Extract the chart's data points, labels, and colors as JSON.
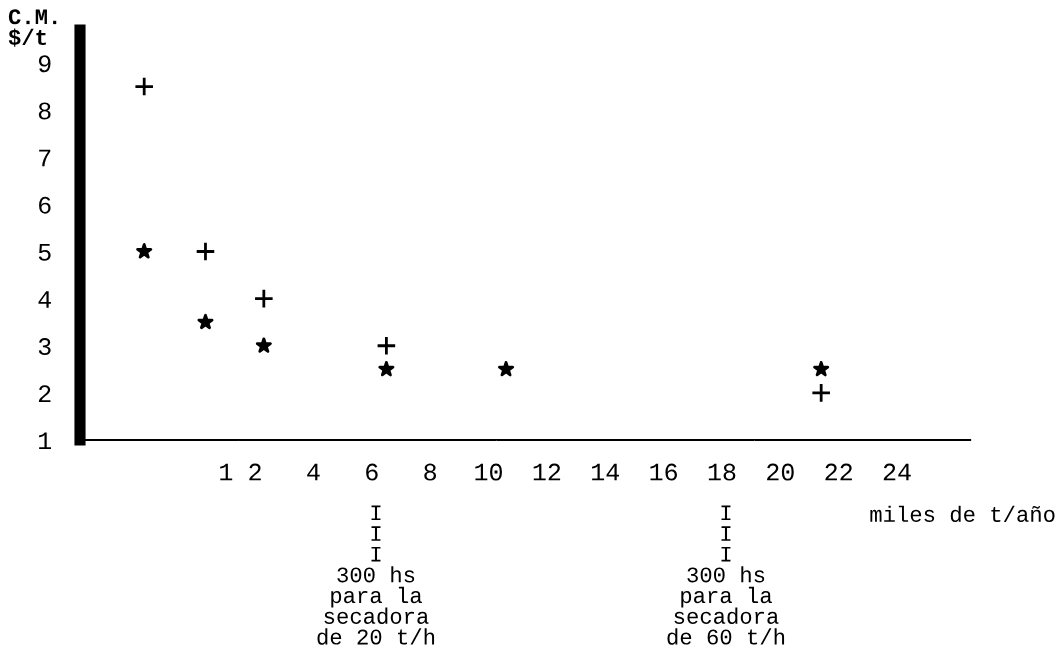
{
  "chart_data": {
    "type": "scatter",
    "ylabel": "C.M.\n$/t",
    "xlabel": "miles de t/año",
    "series": [
      {
        "color": "#000000",
        "marker": "cross",
        "x": [
          -1.8,
          0.3,
          2.3,
          6.5,
          21.4
        ],
        "values": [
          8.5,
          5,
          4,
          3,
          2
        ]
      },
      {
        "color": "#000000",
        "marker": "star",
        "x": [
          -1.8,
          0.3,
          2.3,
          6.5,
          10.6,
          21.4
        ],
        "values": [
          5,
          3.5,
          3,
          2.5,
          2.5,
          2.5
        ]
      }
    ],
    "xlim": [
      -4,
      26.5
    ],
    "ylim": [
      1,
      9.7
    ],
    "xticks": [
      1,
      2,
      4,
      6,
      8,
      10,
      12,
      14,
      16,
      18,
      20,
      22,
      24
    ],
    "yticks": [
      1,
      2,
      3,
      4,
      5,
      6,
      7,
      8,
      9
    ],
    "grid": false,
    "legend": false,
    "annotations": [
      "I\nI\nI\n300 hs\npara la\nsecadora\nde 20 t/h",
      "I\nI\nI\n300 hs\npara la\nsecadora\nde 60 t/h"
    ]
  }
}
